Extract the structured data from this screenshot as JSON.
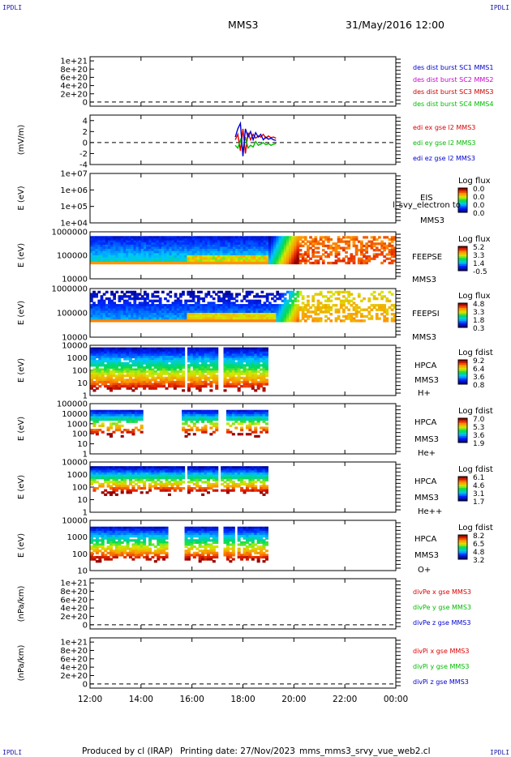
{
  "corner_label": "IPDLI",
  "header": {
    "spacecraft": "MMS3",
    "datetime": "31/May/2016 12:00"
  },
  "footer": {
    "produced_by": "Produced by cl (IRAP)",
    "printing_date": "Printing date: 27/Nov/2023",
    "script_name": "mms_mms3_srvy_vue_web2.cl"
  },
  "colors": {
    "mms1": "#0000cc",
    "mms2": "#cc00cc",
    "mms3": "#cc0000",
    "mms4": "#00bb00",
    "blue": "#0000cc",
    "red": "#dd0000",
    "green": "#00bb00"
  },
  "chart_data": [
    {
      "type": "line",
      "id": "des-dist-burst",
      "ylabel": "",
      "ylim": [
        -1e+20,
        1.1e+21
      ],
      "yticks": [
        "1e+21",
        "8e+20",
        "6e+20",
        "4e+20",
        "2e+20",
        "0"
      ],
      "ytick_values": [
        1e+21,
        8e+20,
        6e+20,
        4e+20,
        2e+20,
        0
      ],
      "legend": [
        "des dist burst SC1 MMS1",
        "des dist burst SC2 MMS2",
        "des dist burst SC3 MMS3",
        "des dist burst SC4 MMS4"
      ],
      "series": []
    },
    {
      "type": "line",
      "id": "edi-e",
      "ylabel": "(mV/m)",
      "ylim": [
        -4,
        5
      ],
      "yticks": [
        "4",
        "2",
        "0",
        "-2",
        "-4"
      ],
      "ytick_values": [
        4,
        2,
        0,
        -2,
        -4
      ],
      "legend": [
        "edi ex gse l2 MMS3",
        "edi ey gse l2 MMS3",
        "edi ez gse l2 MMS3"
      ],
      "x_hours_range": [
        17.7,
        19.3
      ],
      "series": [
        {
          "name": "edi ex gse l2 MMS3",
          "x": [
            17.7,
            17.8,
            17.9,
            18.0,
            18.1,
            18.2,
            18.3,
            18.4,
            18.5,
            18.6,
            18.7,
            18.8,
            18.9,
            19.0,
            19.1,
            19.2,
            19.3
          ],
          "values": [
            0.5,
            1.5,
            -1.5,
            2.5,
            -2.0,
            1.8,
            0.5,
            1.5,
            0.8,
            1.2,
            1.0,
            1.5,
            0.8,
            1.2,
            0.9,
            1.0,
            0.8
          ]
        },
        {
          "name": "edi ey gse l2 MMS3",
          "x": [
            17.7,
            17.8,
            17.9,
            18.0,
            18.1,
            18.2,
            18.3,
            18.4,
            18.5,
            18.6,
            18.7,
            18.8,
            18.9,
            19.0,
            19.1,
            19.2,
            19.3
          ],
          "values": [
            -0.5,
            -1.0,
            0.5,
            -1.5,
            1.0,
            -1.0,
            -0.5,
            -0.8,
            0.2,
            -0.5,
            -0.3,
            0.0,
            -0.4,
            -0.2,
            -0.5,
            -0.3,
            -0.2
          ]
        },
        {
          "name": "edi ez gse l2 MMS3",
          "x": [
            17.7,
            17.8,
            17.9,
            18.0,
            18.1,
            18.2,
            18.3,
            18.4,
            18.5,
            18.6,
            18.7,
            18.8,
            18.9,
            19.0,
            19.1,
            19.2,
            19.3
          ],
          "values": [
            1.0,
            2.5,
            3.5,
            -2.5,
            2.5,
            1.0,
            2.0,
            0.5,
            1.8,
            1.0,
            1.5,
            0.5,
            1.0,
            0.6,
            0.8,
            0.5,
            0.4
          ]
        }
      ]
    },
    {
      "type": "heatmap",
      "id": "eis",
      "ylabel": "E (eV)",
      "yticks": [
        "1e+07",
        "1e+06",
        "1e+05",
        "1e+04"
      ],
      "labels": [
        "EIS",
        "MMS3"
      ],
      "overlay_text": "l_svy_electron to",
      "colorbar_title": "Log flux",
      "colorbar_ticks": [
        "0.0",
        "0.0",
        "0.0",
        "0.0"
      ]
    },
    {
      "type": "heatmap",
      "id": "feepse",
      "ylabel": "E (eV)",
      "yticks": [
        "1000000",
        "100000",
        "10000"
      ],
      "labels": [
        "FEEPSE",
        "MMS3"
      ],
      "colorbar_title": "Log flux",
      "colorbar_ticks": [
        "5.2",
        "3.3",
        "1.4",
        "-0.5"
      ]
    },
    {
      "type": "heatmap",
      "id": "feepsi",
      "ylabel": "E (eV)",
      "yticks": [
        "1000000",
        "100000",
        "10000"
      ],
      "labels": [
        "FEEPSI",
        "MMS3"
      ],
      "colorbar_title": "Log flux",
      "colorbar_ticks": [
        "4.8",
        "3.3",
        "1.8",
        "0.3"
      ]
    },
    {
      "type": "heatmap",
      "id": "hpca-h",
      "ylabel": "E (eV)",
      "yticks": [
        "10000",
        "1000",
        "100",
        "10",
        "1"
      ],
      "labels": [
        "HPCA",
        "MMS3",
        "H+"
      ],
      "colorbar_title": "Log fdist",
      "colorbar_ticks": [
        "9.2",
        "6.4",
        "3.6",
        "0.8"
      ]
    },
    {
      "type": "heatmap",
      "id": "hpca-he",
      "ylabel": "E (eV)",
      "yticks": [
        "100000",
        "10000",
        "1000",
        "100",
        "10",
        "1"
      ],
      "labels": [
        "HPCA",
        "MMS3",
        "He+"
      ],
      "colorbar_title": "Log fdist",
      "colorbar_ticks": [
        "7.0",
        "5.3",
        "3.6",
        "1.9"
      ]
    },
    {
      "type": "heatmap",
      "id": "hpca-he2",
      "ylabel": "E (eV)",
      "yticks": [
        "10000",
        "1000",
        "100",
        "10",
        "1"
      ],
      "labels": [
        "HPCA",
        "MMS3",
        "He++"
      ],
      "colorbar_title": "Log fdist",
      "colorbar_ticks": [
        "6.1",
        "4.6",
        "3.1",
        "1.7"
      ]
    },
    {
      "type": "heatmap",
      "id": "hpca-o",
      "ylabel": "E (eV)",
      "yticks": [
        "10000",
        "1000",
        "100",
        "10"
      ],
      "labels": [
        "HPCA",
        "MMS3",
        "O+"
      ],
      "colorbar_title": "Log fdist",
      "colorbar_ticks": [
        "8.2",
        "6.5",
        "4.8",
        "3.2"
      ]
    },
    {
      "type": "line",
      "id": "divpe",
      "ylabel": "(nPa/km)",
      "ylim": [
        -1e+20,
        1.1e+21
      ],
      "yticks": [
        "1e+21",
        "8e+20",
        "6e+20",
        "4e+20",
        "2e+20",
        "0"
      ],
      "ytick_values": [
        1e+21,
        8e+20,
        6e+20,
        4e+20,
        2e+20,
        0
      ],
      "legend": [
        "divPe x gse MMS3",
        "divPe y gse MMS3",
        "divPe z gse MMS3"
      ],
      "series": []
    },
    {
      "type": "line",
      "id": "divpi",
      "ylabel": "(nPa/km)",
      "ylim": [
        -1e+20,
        1.1e+21
      ],
      "yticks": [
        "1e+21",
        "8e+20",
        "6e+20",
        "4e+20",
        "2e+20",
        "0"
      ],
      "ytick_values": [
        1e+21,
        8e+20,
        6e+20,
        4e+20,
        2e+20,
        0
      ],
      "legend": [
        "divPi x gse MMS3",
        "divPi y gse MMS3",
        "divPi z gse MMS3"
      ],
      "series": []
    }
  ],
  "x_axis": {
    "tick_labels": [
      "12:00",
      "14:00",
      "16:00",
      "18:00",
      "20:00",
      "22:00",
      "00:00"
    ],
    "range_hours": [
      12,
      24
    ]
  }
}
